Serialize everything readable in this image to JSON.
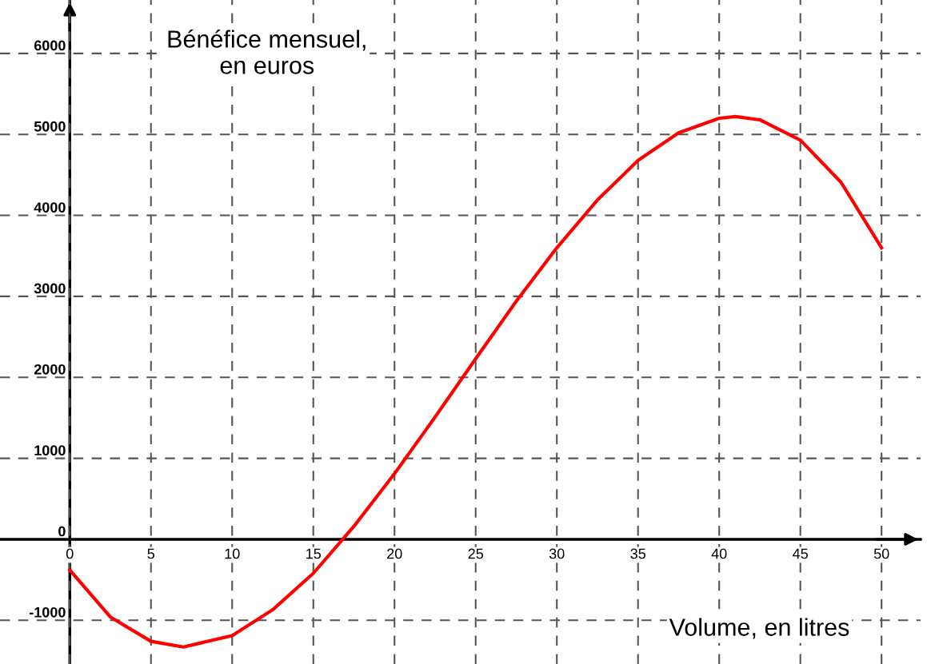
{
  "chart_data": {
    "type": "line",
    "xlabel": "Volume, en litres",
    "ylabel": "Bénéfice mensuel,\nen euros",
    "x": [
      0,
      2.5,
      5,
      7,
      10,
      12.5,
      15,
      17.5,
      20,
      22.5,
      25,
      27.5,
      30,
      32.5,
      35,
      37.5,
      40,
      41,
      42.5,
      45,
      47.5,
      50
    ],
    "series": [
      {
        "color": "#ff0000",
        "values": [
          -380,
          -960,
          -1260,
          -1330,
          -1190,
          -870,
          -420,
          160,
          810,
          1510,
          2230,
          2940,
          3600,
          4190,
          4680,
          5020,
          5200,
          5220,
          5180,
          4930,
          4410,
          3600
        ]
      }
    ],
    "xlim": [
      -4.3,
      52.4
    ],
    "ylim": [
      -1540,
      6660
    ],
    "xticks": [
      0,
      5,
      10,
      15,
      20,
      25,
      30,
      35,
      40,
      45,
      50
    ],
    "yticks": [
      -1000,
      0,
      1000,
      2000,
      3000,
      4000,
      5000,
      6000
    ],
    "grid": true,
    "line_style": "solid",
    "marker": "none"
  }
}
